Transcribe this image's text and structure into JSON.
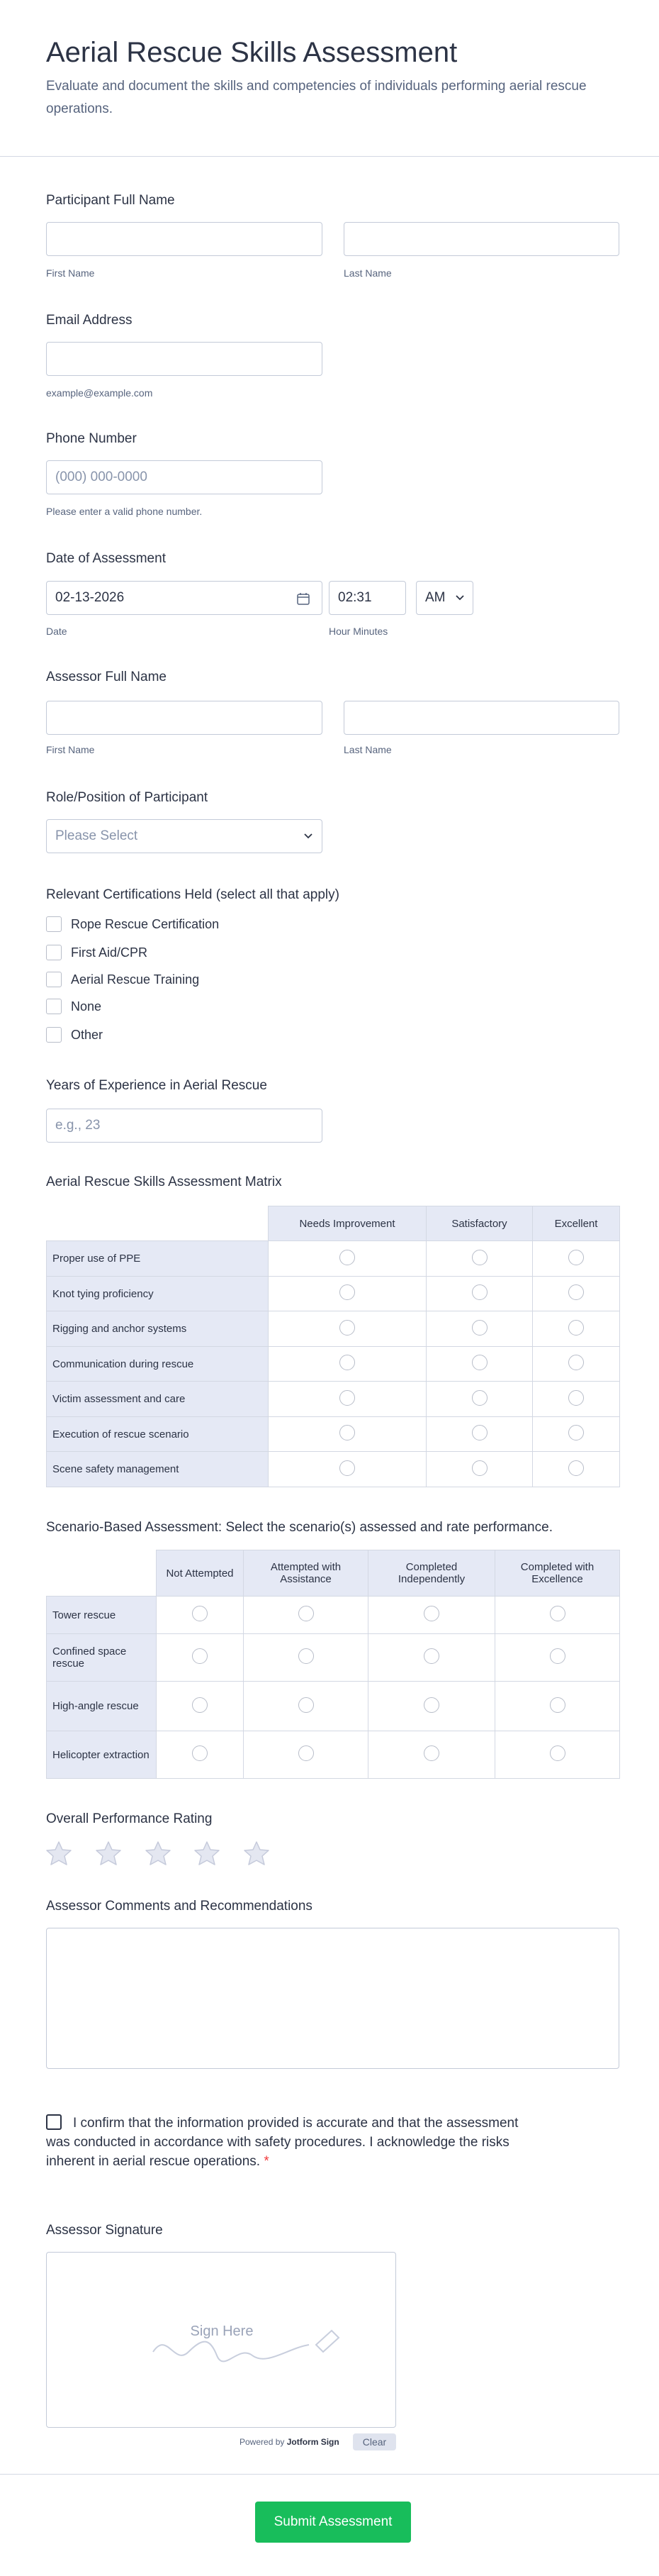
{
  "header": {
    "title": "Aerial Rescue Skills Assessment",
    "subtitle": "Evaluate and document the skills and competencies of individuals performing aerial rescue operations."
  },
  "participant": {
    "label": "Participant Full Name",
    "first": "First Name",
    "last": "Last Name"
  },
  "email": {
    "label": "Email Address",
    "sublabel": "example@example.com"
  },
  "phone": {
    "label": "Phone Number",
    "placeholder": "(000) 000-0000",
    "sublabel": "Please enter a valid phone number."
  },
  "date": {
    "label": "Date of Assessment",
    "date": "02-13-2026",
    "time": "02:31",
    "ampm": "AM",
    "date_sublabel": "Date",
    "time_sublabel": "Hour Minutes"
  },
  "assessor": {
    "label": "Assessor Full Name",
    "first": "First Name",
    "last": "Last Name"
  },
  "role": {
    "label": "Role/Position of Participant",
    "placeholder": "Please Select"
  },
  "certifications": {
    "label": "Relevant Certifications Held (select all that apply)",
    "options": [
      "Rope Rescue Certification",
      "First Aid/CPR",
      "Aerial Rescue Training",
      "None",
      "Other"
    ]
  },
  "experience": {
    "label": "Years of Experience in Aerial Rescue",
    "placeholder": "e.g., 23"
  },
  "skills_matrix": {
    "label": "Aerial Rescue Skills Assessment Matrix",
    "columns": [
      "Needs Improvement",
      "Satisfactory",
      "Excellent"
    ],
    "rows": [
      "Proper use of PPE",
      "Knot tying proficiency",
      "Rigging and anchor systems",
      "Communication during rescue",
      "Victim assessment and care",
      "Execution of rescue scenario",
      "Scene safety management"
    ]
  },
  "scenario_matrix": {
    "label": "Scenario-Based Assessment: Select the scenario(s) assessed and rate performance.",
    "columns": [
      "Not Attempted",
      "Attempted with Assistance",
      "Completed Independently",
      "Completed with Excellence"
    ],
    "rows": [
      "Tower rescue",
      "Confined space rescue",
      "High-angle rescue",
      "Helicopter extraction"
    ]
  },
  "rating": {
    "label": "Overall Performance Rating"
  },
  "comments": {
    "label": "Assessor Comments and Recommendations"
  },
  "confirmation": {
    "text": "I confirm that the information provided is accurate and that the assessment was conducted in accordance with safety procedures. I acknowledge the risks inherent in aerial rescue operations.",
    "required_mark": "*"
  },
  "signature": {
    "label": "Assessor Signature",
    "placeholder": "Sign Here",
    "powered_by": "Powered by",
    "brand": "Jotform Sign",
    "clear": "Clear"
  },
  "submit": {
    "label": "Submit Assessment"
  }
}
